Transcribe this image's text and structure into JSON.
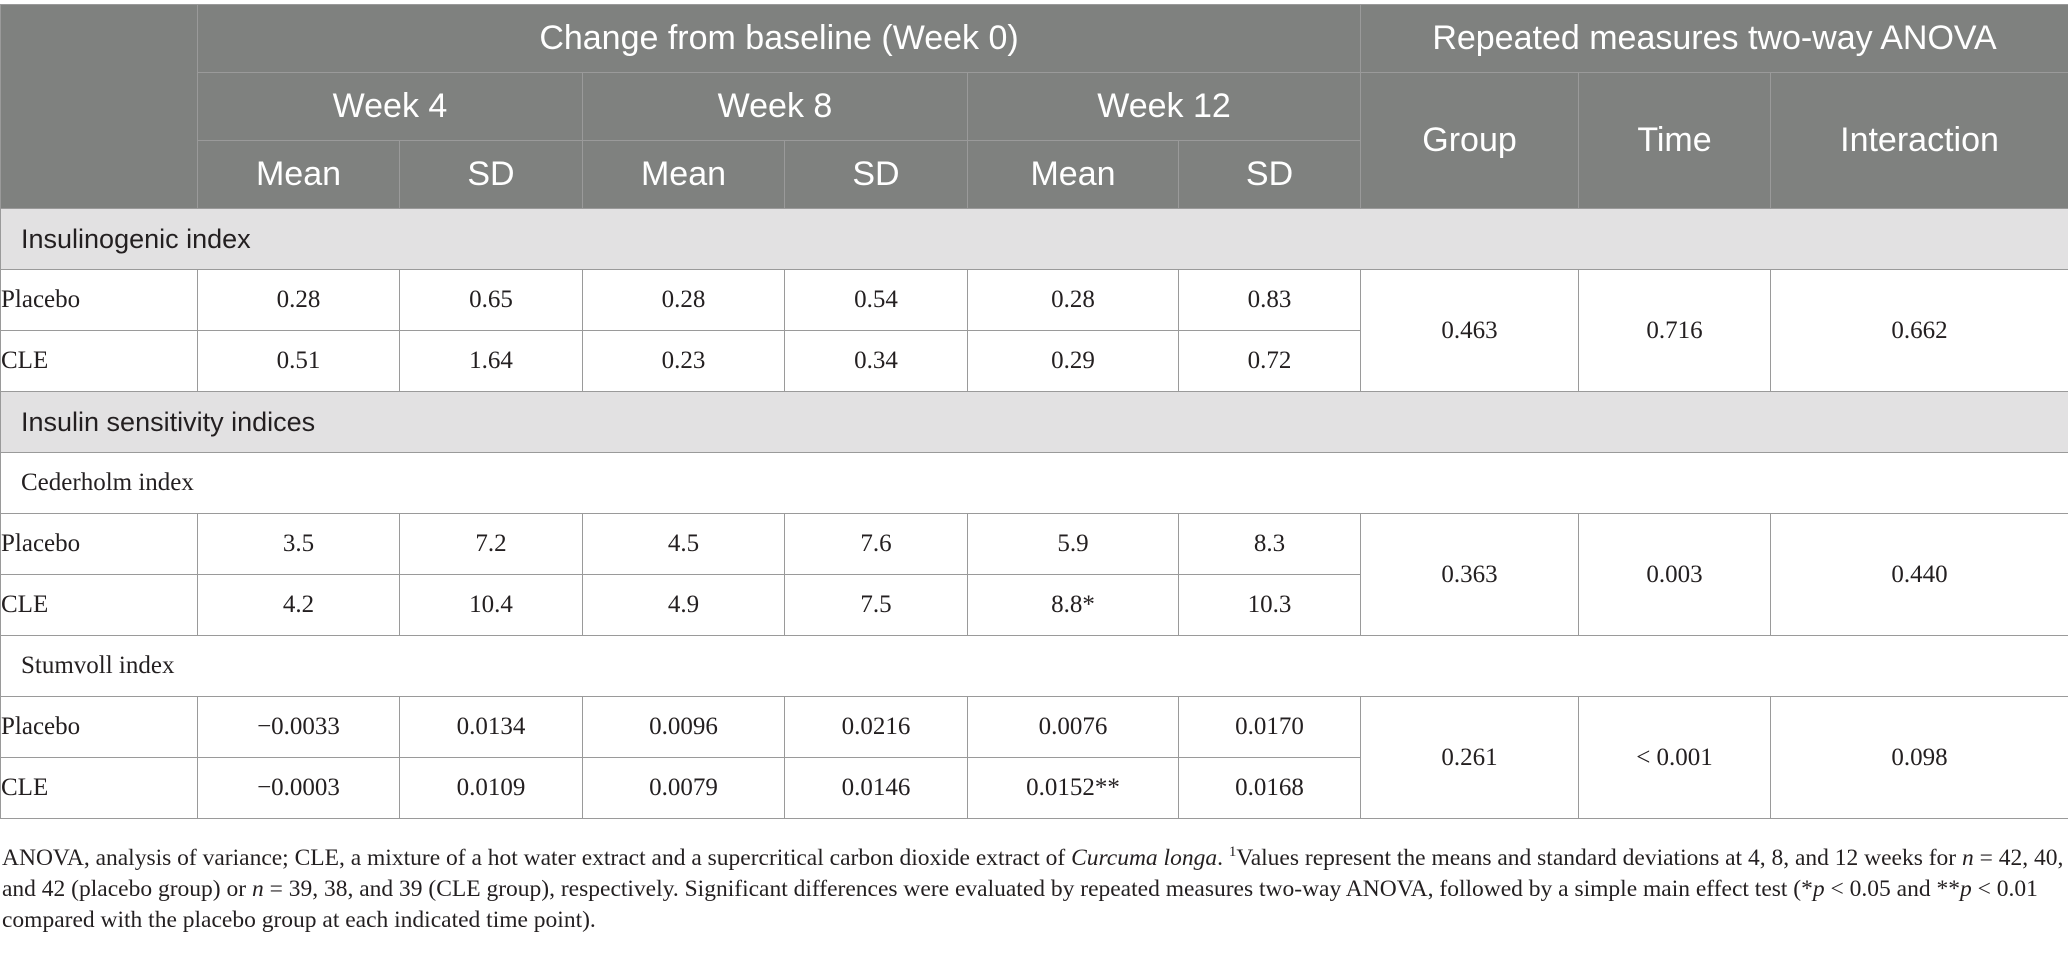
{
  "header": {
    "change_label": "Change from baseline (Week 0)",
    "anova_label": "Repeated measures two-way ANOVA",
    "weeks": [
      "Week 4",
      "Week 8",
      "Week 12"
    ],
    "mean_label": "Mean",
    "sd_label": "SD",
    "group_label": "Group",
    "time_label": "Time",
    "interaction_label": "Interaction"
  },
  "sections": [
    {
      "title": "Insulinogenic index",
      "subsections": [
        {
          "title": "",
          "rows": [
            {
              "label": "Placebo",
              "values": [
                "0.28",
                "0.65",
                "0.28",
                "0.54",
                "0.28",
                "0.83"
              ]
            },
            {
              "label": "CLE",
              "values": [
                "0.51",
                "1.64",
                "0.23",
                "0.34",
                "0.29",
                "0.72"
              ]
            }
          ],
          "anova": {
            "group": "0.463",
            "time": "0.716",
            "interaction": "0.662"
          }
        }
      ]
    },
    {
      "title": "Insulin sensitivity indices",
      "subsections": [
        {
          "title": "Cederholm index",
          "rows": [
            {
              "label": "Placebo",
              "values": [
                "3.5",
                "7.2",
                "4.5",
                "7.6",
                "5.9",
                "8.3"
              ]
            },
            {
              "label": "CLE",
              "values": [
                "4.2",
                "10.4",
                "4.9",
                "7.5",
                "8.8*",
                "10.3"
              ]
            }
          ],
          "anova": {
            "group": "0.363",
            "time": "0.003",
            "interaction": "0.440"
          }
        },
        {
          "title": "Stumvoll index",
          "rows": [
            {
              "label": "Placebo",
              "values": [
                "−0.0033",
                "0.0134",
                "0.0096",
                "0.0216",
                "0.0076",
                "0.0170"
              ]
            },
            {
              "label": "CLE",
              "values": [
                "−0.0003",
                "0.0109",
                "0.0079",
                "0.0146",
                "0.0152**",
                "0.0168"
              ]
            }
          ],
          "anova": {
            "group": "0.261",
            "time": "< 0.001",
            "interaction": "0.098"
          }
        }
      ]
    }
  ],
  "footnote": {
    "part1": "ANOVA, analysis of variance; CLE, a mixture of a hot water extract and a supercritical carbon dioxide extract of ",
    "species": "Curcuma longa",
    "part2": ". ",
    "sup": "1",
    "part3": "Values represent the means and standard deviations at 4, 8, and 12 weeks for ",
    "n1": "n",
    "part4": " = 42, 40, and 42 (placebo group) or ",
    "n2": "n",
    "part5": " = 39, 38, and 39 (CLE group), respectively. Significant differences were evaluated by repeated measures two-way ANOVA, followed by a simple main effect test (*",
    "p1": "p",
    "part6": " < 0.05 and **",
    "p2": "p",
    "part7": " < 0.01 compared with the placebo group at each indicated time point)."
  }
}
